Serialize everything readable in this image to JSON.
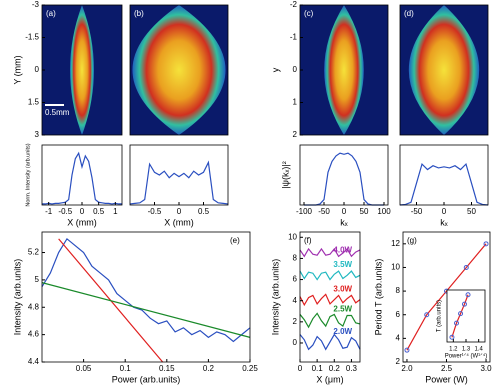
{
  "chart_data": [
    {
      "type": "image",
      "label": "(a)",
      "ylabel": "Y (mm)",
      "ylim": [
        3,
        -3
      ],
      "yticks": [
        -3,
        -1.5,
        0,
        1.5,
        3
      ],
      "scale_label": "0.5mm"
    },
    {
      "type": "image",
      "label": "(b)"
    },
    {
      "type": "line",
      "ylabel": "Norm. Intensity (arb.units)",
      "xlabel": "X (mm)",
      "xlim": [
        -1.2,
        1.2
      ],
      "xticks": [
        -1,
        -0.5,
        0,
        0.5,
        1
      ],
      "ylim": [
        0,
        1.1
      ],
      "color": "#2a4fc0",
      "x": [
        -1.2,
        -1.1,
        -1,
        -0.9,
        -0.8,
        -0.7,
        -0.6,
        -0.5,
        -0.4,
        -0.3,
        -0.2,
        -0.1,
        0,
        0.1,
        0.2,
        0.3,
        0.4,
        0.5,
        0.6,
        0.7,
        0.8,
        0.9,
        1,
        1.1,
        1.2
      ],
      "values": [
        0.02,
        0.02,
        0.03,
        0.02,
        0.03,
        0.03,
        0.04,
        0.05,
        0.1,
        0.55,
        0.85,
        0.95,
        0.7,
        0.9,
        0.8,
        0.5,
        0.1,
        0.05,
        0.04,
        0.03,
        0.03,
        0.02,
        0.03,
        0.02,
        0.02
      ]
    },
    {
      "type": "line",
      "xlabel": "X (mm)",
      "xlim": [
        -1,
        1
      ],
      "xticks": [
        -0.5,
        0,
        0.5
      ],
      "ylim": [
        0,
        1.1
      ],
      "color": "#2a4fc0",
      "x": [
        -1,
        -0.9,
        -0.8,
        -0.7,
        -0.6,
        -0.5,
        -0.4,
        -0.3,
        -0.2,
        -0.1,
        0,
        0.1,
        0.2,
        0.3,
        0.4,
        0.5,
        0.6,
        0.7,
        0.8,
        0.9,
        1
      ],
      "values": [
        0.02,
        0.03,
        0.04,
        0.1,
        0.75,
        0.6,
        0.55,
        0.62,
        0.5,
        0.58,
        0.52,
        0.58,
        0.5,
        0.62,
        0.55,
        0.6,
        0.78,
        0.1,
        0.04,
        0.03,
        0.02
      ]
    },
    {
      "type": "image",
      "label": "(c)",
      "ylabel": "y",
      "ylim": [
        2,
        -2
      ],
      "yticks": [
        -2,
        -1,
        0,
        1,
        2
      ]
    },
    {
      "type": "image",
      "label": "(d)"
    },
    {
      "type": "line",
      "ylabel": "|ψ(kₓ)|²",
      "xlabel": "kₓ",
      "xlim": [
        -110,
        110
      ],
      "xticks": [
        -100,
        -50,
        0,
        50,
        100
      ],
      "ylim": [
        0,
        1.1
      ],
      "color": "#2a4fc0",
      "x": [
        -100,
        -90,
        -80,
        -70,
        -60,
        -50,
        -40,
        -30,
        -20,
        -10,
        0,
        10,
        20,
        30,
        40,
        50,
        60,
        70,
        80,
        90,
        100
      ],
      "values": [
        0,
        0,
        0,
        0,
        0.02,
        0.1,
        0.6,
        0.8,
        0.9,
        0.95,
        0.93,
        0.95,
        0.9,
        0.8,
        0.6,
        0.1,
        0.02,
        0,
        0,
        0,
        0
      ]
    },
    {
      "type": "line",
      "xlabel": "kₓ",
      "xlim": [
        -80,
        80
      ],
      "xticks": [
        -50,
        0,
        50
      ],
      "ylim": [
        0,
        1.1
      ],
      "color": "#2a4fc0",
      "x": [
        -80,
        -70,
        -60,
        -50,
        -40,
        -30,
        -20,
        -10,
        0,
        10,
        20,
        30,
        40,
        50,
        60,
        70,
        80
      ],
      "values": [
        0,
        0.01,
        0.05,
        0.4,
        0.75,
        0.65,
        0.72,
        0.68,
        0.7,
        0.68,
        0.72,
        0.65,
        0.75,
        0.4,
        0.05,
        0.01,
        0
      ]
    },
    {
      "type": "line",
      "label": "(e)",
      "xlabel": "Power (arb.units)",
      "ylabel": "Intensity (arb.units)",
      "xlim": [
        0,
        0.25
      ],
      "xticks": [
        0.05,
        0.1,
        0.15,
        0.2,
        0.25
      ],
      "ylim": [
        4.4,
        5.35
      ],
      "yticks": [
        4.4,
        4.6,
        4.8,
        5,
        5.2
      ],
      "series": [
        {
          "color": "#2a4fc0",
          "x": [
            0,
            0.01,
            0.02,
            0.03,
            0.04,
            0.05,
            0.06,
            0.07,
            0.08,
            0.09,
            0.1,
            0.11,
            0.12,
            0.13,
            0.14,
            0.15,
            0.16,
            0.17,
            0.18,
            0.19,
            0.2,
            0.21,
            0.22,
            0.23,
            0.24,
            0.25
          ],
          "values": [
            4.95,
            5.05,
            5.2,
            5.3,
            5.25,
            5.2,
            5.1,
            5.05,
            5.0,
            4.9,
            4.85,
            4.8,
            4.78,
            4.72,
            4.68,
            4.7,
            4.62,
            4.65,
            4.6,
            4.63,
            4.58,
            4.62,
            4.6,
            4.55,
            4.6,
            4.65
          ]
        },
        {
          "color": "#e02020",
          "x": [
            0.02,
            0.145
          ],
          "values": [
            5.3,
            4.4
          ]
        },
        {
          "color": "#1a8a2a",
          "x": [
            0,
            0.25
          ],
          "values": [
            4.98,
            4.58
          ]
        }
      ]
    },
    {
      "type": "line",
      "label": "(f)",
      "xlabel": "X (μm)",
      "ylabel": "Intensity (arb.units)",
      "xlim": [
        0,
        0.35
      ],
      "xticks": [
        0,
        0.1,
        0.2,
        0.3
      ],
      "ylim": [
        -1.8,
        10.5
      ],
      "yticks": [
        0,
        2,
        4,
        6,
        8,
        10
      ],
      "x": [
        0,
        0.025,
        0.05,
        0.075,
        0.1,
        0.125,
        0.15,
        0.175,
        0.2,
        0.225,
        0.25,
        0.275,
        0.3,
        0.325,
        0.35
      ],
      "series": [
        {
          "name": "2.0W",
          "color": "#2a4fc0",
          "values": [
            0.8,
            0.3,
            -0.6,
            -0.2,
            0.6,
            0.2,
            -0.6,
            0.1,
            0.8,
            0.3,
            -0.5,
            -0.4,
            0.5,
            0.2,
            -0.6
          ]
        },
        {
          "name": "2.5W",
          "color": "#1a8a2a",
          "values": [
            2.7,
            2.2,
            1.5,
            2.3,
            2.8,
            2.1,
            1.6,
            2.5,
            2.7,
            1.9,
            1.6,
            2.6,
            2.6,
            1.9,
            1.8
          ]
        },
        {
          "name": "3.0W",
          "color": "#e02020",
          "values": [
            4.4,
            3.6,
            4.3,
            4.5,
            3.7,
            4.2,
            4.6,
            3.7,
            4.1,
            4.5,
            3.8,
            4.2,
            4.5,
            3.8,
            4.1
          ]
        },
        {
          "name": "3.5W",
          "color": "#20b8c0",
          "values": [
            6.8,
            6.1,
            6.7,
            6.6,
            6.0,
            6.6,
            6.7,
            6.0,
            6.5,
            6.8,
            6.1,
            6.4,
            6.8,
            6.2,
            6.4
          ]
        },
        {
          "name": "4.0W",
          "color": "#a030b0",
          "values": [
            8.8,
            8.2,
            8.9,
            8.4,
            8.3,
            8.9,
            8.3,
            8.4,
            8.9,
            8.2,
            8.5,
            8.9,
            8.2,
            8.6,
            8.8
          ]
        }
      ]
    },
    {
      "type": "line",
      "label": "(g)",
      "xlabel": "Power (W)",
      "ylabel": "Period T (arb.units)",
      "xlim": [
        1.95,
        3.05
      ],
      "xticks": [
        {
          "value": 2,
          "label": "2.0"
        },
        2.5,
        {
          "value": 3,
          "label": "3.0"
        }
      ],
      "ylim": [
        2,
        13
      ],
      "yticks": [
        2,
        4,
        6,
        8,
        10,
        12
      ],
      "series": [
        {
          "color": "#e02020",
          "marker_color": "#4a5fd0",
          "x": [
            2,
            2.25,
            2.5,
            2.75,
            3
          ],
          "values": [
            3,
            6,
            8,
            10,
            12
          ]
        }
      ]
    },
    {
      "type": "line",
      "xlabel": "Power¹ᐟ⁴ (W¹ᐟ⁴)",
      "ylabel": "T (arb.units)",
      "xlim": [
        1.15,
        1.45
      ],
      "xticks": [
        1.2,
        1.3,
        1.4
      ],
      "ylim": [
        2,
        13
      ],
      "series": [
        {
          "color": "#e02020",
          "marker_color": "#4a5fd0",
          "x": [
            1.189,
            1.225,
            1.257,
            1.288,
            1.316
          ],
          "values": [
            3,
            6,
            8,
            10,
            12
          ]
        }
      ]
    }
  ]
}
